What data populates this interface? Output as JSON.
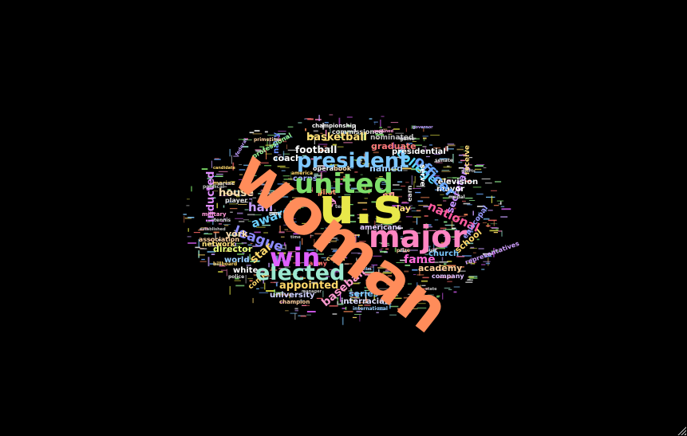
{
  "wordcloud": {
    "words": [
      {
        "text": "woman",
        "color": "#ff8c5a"
      },
      {
        "text": "u.s",
        "color": "#e8e84a"
      },
      {
        "text": "united",
        "color": "#7ee06a"
      },
      {
        "text": "major",
        "color": "#ff85c2"
      },
      {
        "text": "president",
        "color": "#7ec8ff"
      },
      {
        "text": "elected",
        "color": "#9ce8d0"
      },
      {
        "text": "win",
        "color": "#e060ff"
      },
      {
        "text": "officer",
        "color": "#6aa8ff"
      },
      {
        "text": "league",
        "color": "#8c8cff"
      },
      {
        "text": "award",
        "color": "#6ad0ff"
      },
      {
        "text": "hall",
        "color": "#c8a0ff"
      },
      {
        "text": "college",
        "color": "#5adcff"
      },
      {
        "text": "national",
        "color": "#ff5aa0"
      },
      {
        "text": "fame",
        "color": "#ff6ad8"
      },
      {
        "text": "inducted",
        "color": "#e08cff"
      },
      {
        "text": "basketball",
        "color": "#ffe07a"
      },
      {
        "text": "football",
        "color": "#ffffff"
      },
      {
        "text": "baseball",
        "color": "#ff9ad0"
      },
      {
        "text": "appointed",
        "color": "#ffd86a"
      },
      {
        "text": "star",
        "color": "#ffd86a"
      },
      {
        "text": "house",
        "color": "#ffe0b0"
      },
      {
        "text": "coach",
        "color": "#ffffff"
      },
      {
        "text": "secretary",
        "color": "#c890ff"
      },
      {
        "text": "academy",
        "color": "#ffd09a"
      },
      {
        "text": "graduate",
        "color": "#ff7a7a"
      },
      {
        "text": "named",
        "color": "#a0d0ff"
      },
      {
        "text": "director",
        "color": "#e8ff7a"
      },
      {
        "text": "television",
        "color": "#ffffff"
      },
      {
        "text": "mayor",
        "color": "#ffffff"
      },
      {
        "text": "city",
        "color": "#ff9ad8"
      },
      {
        "text": "play",
        "color": "#ffe07a"
      },
      {
        "text": "series",
        "color": "#7ac8ff"
      },
      {
        "text": "university",
        "color": "#d0d0ff"
      },
      {
        "text": "interracial",
        "color": "#e0e0ff"
      },
      {
        "text": "church",
        "color": "#7ac8ff"
      },
      {
        "text": "school",
        "color": "#ffd86a"
      },
      {
        "text": "nfl",
        "color": "#ff9a9a"
      },
      {
        "text": "americans",
        "color": "#e0d0ff"
      },
      {
        "text": "presidential",
        "color": "#ffffff"
      },
      {
        "text": "corps",
        "color": "#a0b0ff"
      },
      {
        "text": "pilot",
        "color": "#ff9a6a"
      },
      {
        "text": "york",
        "color": "#ffe0b0"
      },
      {
        "text": "world",
        "color": "#9ad0ff"
      },
      {
        "text": "network",
        "color": "#ffe07a"
      },
      {
        "text": "association",
        "color": "#ffd0a0"
      },
      {
        "text": "white",
        "color": "#ffffff"
      },
      {
        "text": "comic",
        "color": "#ffd86a"
      },
      {
        "text": "navy",
        "color": "#6a8cff"
      },
      {
        "text": "serve",
        "color": "#ffffff"
      },
      {
        "text": "receive",
        "color": "#ffe07a"
      },
      {
        "text": "commissioned",
        "color": "#e0e0e0"
      },
      {
        "text": "nominated",
        "color": "#c0c0c0"
      },
      {
        "text": "professional",
        "color": "#9aff9a"
      },
      {
        "text": "book",
        "color": "#ffe0b0"
      },
      {
        "text": "opera",
        "color": "#ffffff"
      },
      {
        "text": "representatives",
        "color": "#d0a0ff"
      },
      {
        "text": "episcopal",
        "color": "#9a9aff"
      },
      {
        "text": "earn",
        "color": "#e0e0e0"
      },
      {
        "text": "army",
        "color": "#ff6a6a"
      },
      {
        "text": "cover",
        "color": "#ffd86a"
      },
      {
        "text": "company",
        "color": "#e0c0ff"
      },
      {
        "text": "champion",
        "color": "#ffd0a0"
      },
      {
        "text": "player",
        "color": "#e0e0e0"
      },
      {
        "text": "military",
        "color": "#ff9ad8"
      },
      {
        "text": "marine",
        "color": "#ffd86a"
      },
      {
        "text": "political",
        "color": "#c0c0c0"
      },
      {
        "text": "championship",
        "color": "#ffffff"
      },
      {
        "text": "primetime",
        "color": "#ffd0a0"
      },
      {
        "text": "federal",
        "color": "#c0a0ff"
      },
      {
        "text": "senate",
        "color": "#e0e0e0"
      },
      {
        "text": "america",
        "color": "#ffd86a"
      },
      {
        "text": "team",
        "color": "#c0c0c0"
      },
      {
        "text": "police",
        "color": "#e0e0e0"
      },
      {
        "text": "tennis",
        "color": "#e0e0e0"
      },
      {
        "text": "billboard",
        "color": "#ffd86a"
      },
      {
        "text": "established",
        "color": "#c0c0c0"
      },
      {
        "text": "international",
        "color": "#9ad0ff"
      },
      {
        "text": "court",
        "color": "#e0e0e0"
      },
      {
        "text": "game",
        "color": "#e0e0e0"
      },
      {
        "text": "service",
        "color": "#c0c0c0"
      },
      {
        "text": "manager",
        "color": "#c0c0c0"
      },
      {
        "text": "greek",
        "color": "#9aff9a"
      },
      {
        "text": "prize",
        "color": "#ffd0a0"
      },
      {
        "text": "medal",
        "color": "#e0e0e0"
      },
      {
        "text": "sports",
        "color": "#c0c0c0"
      },
      {
        "text": "ordained",
        "color": "#ff9ad8"
      },
      {
        "text": "party",
        "color": "#c0c0c0"
      },
      {
        "text": "time",
        "color": "#c0c0c0"
      },
      {
        "text": "artist",
        "color": "#e0e0e0"
      },
      {
        "text": "candidate",
        "color": "#ffd86a"
      },
      {
        "text": "governor",
        "color": "#c0a0ff"
      },
      {
        "text": "ballet",
        "color": "#e0e0e0"
      },
      {
        "text": "film",
        "color": "#9ad0ff"
      },
      {
        "text": "state",
        "color": "#c0c0c0"
      }
    ]
  }
}
